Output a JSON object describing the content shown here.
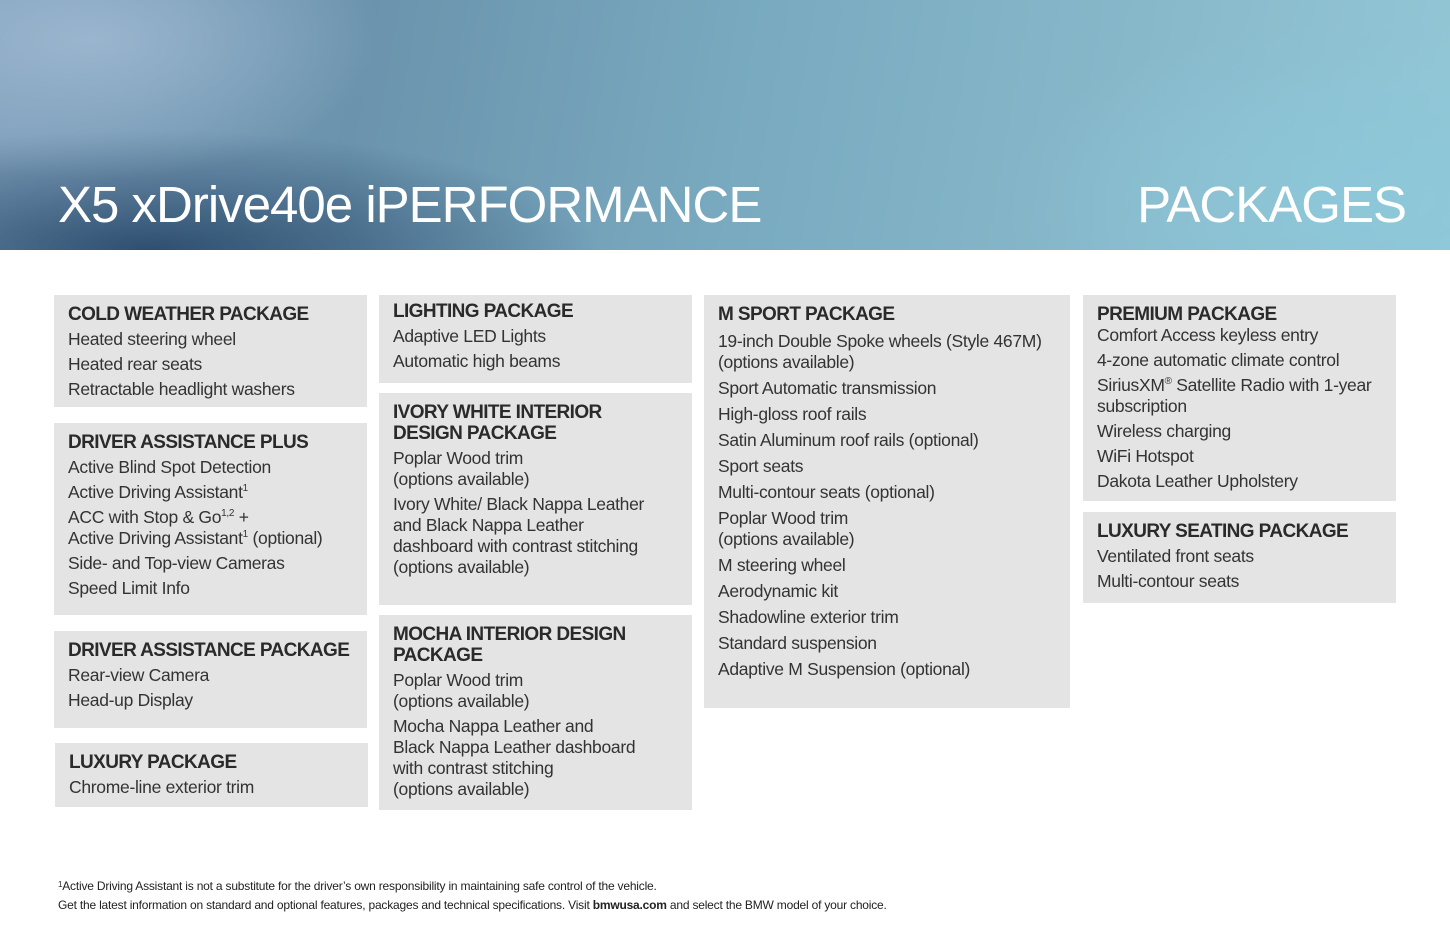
{
  "header": {
    "model": "X5 xDrive40e iPERFORMANCE",
    "section": "PACKAGES"
  },
  "packages": {
    "cold_weather": {
      "title": "COLD WEATHER PACKAGE",
      "items": [
        "Heated steering wheel",
        "Heated rear seats",
        "Retractable headlight washers"
      ]
    },
    "driver_assistance_plus": {
      "title": "DRIVER ASSISTANCE PLUS",
      "items": [
        "Active Blind Spot Detection",
        "Active Driving Assistant",
        "ACC with Stop & Go",
        "+",
        "Active Driving Assistant",
        "(optional)",
        "Side- and Top-view Cameras",
        "Speed Limit Info"
      ],
      "sup_1": "1",
      "sup_12": "1,2"
    },
    "driver_assistance": {
      "title": "DRIVER ASSISTANCE PACKAGE",
      "items": [
        "Rear-view Camera",
        "Head-up Display"
      ]
    },
    "luxury": {
      "title": "LUXURY PACKAGE",
      "items": [
        "Chrome-line exterior trim"
      ]
    },
    "lighting": {
      "title": "LIGHTING PACKAGE",
      "items": [
        "Adaptive LED Lights",
        "Automatic high beams"
      ]
    },
    "ivory_white": {
      "title": "IVORY WHITE INTERIOR\nDESIGN PACKAGE",
      "items": [
        "Poplar Wood trim\n(options available)",
        "Ivory White/ Black Nappa Leather\nand Black Nappa Leather\ndashboard with contrast stitching\n(options available)"
      ]
    },
    "mocha": {
      "title": "MOCHA INTERIOR DESIGN\nPACKAGE",
      "items": [
        "Poplar Wood trim\n(options available)",
        "Mocha Nappa Leather and\nBlack Nappa Leather dashboard\nwith contrast stitching\n(options available)"
      ]
    },
    "m_sport": {
      "title": "M SPORT PACKAGE",
      "items": [
        "19-inch Double Spoke wheels (Style 467M)\n(options available)",
        "Sport Automatic transmission",
        "High-gloss roof rails",
        "Satin Aluminum roof rails (optional)",
        "Sport seats",
        "Multi-contour seats (optional)",
        "Poplar Wood trim\n(options available)",
        "M steering wheel",
        "Aerodynamic kit",
        "Shadowline exterior trim",
        "Standard suspension",
        "Adaptive M Suspension (optional)"
      ]
    },
    "premium": {
      "title": "PREMIUM PACKAGE",
      "items": [
        "Comfort Access keyless entry",
        "4-zone automatic climate control",
        "SiriusXM",
        "®",
        "Satellite Radio with 1-year\nsubscription",
        "Wireless charging",
        "WiFi Hotspot",
        "Dakota Leather Upholstery"
      ]
    },
    "luxury_seating": {
      "title": "LUXURY SEATING PACKAGE",
      "items": [
        "Ventilated front seats",
        "Multi-contour seats"
      ]
    }
  },
  "footer": {
    "note_marker": "1",
    "note_text": "Active Driving Assistant is not a substitute for the driver’s own responsibility in maintaining safe control of the vehicle.",
    "info_before": "Get the latest information on standard and optional features, packages and technical specifications. Visit ",
    "info_link": "bmwusa.com",
    "info_after": " and select the BMW model of your choice."
  }
}
